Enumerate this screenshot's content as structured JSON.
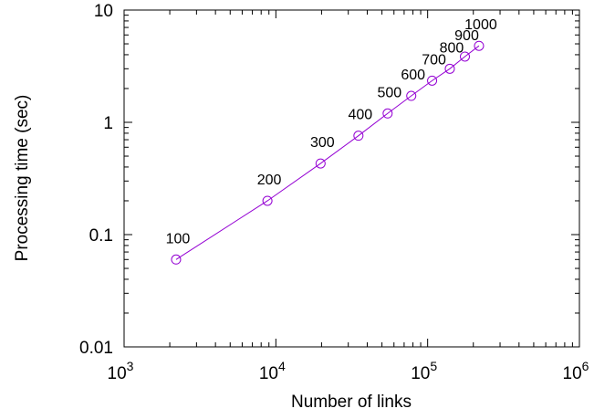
{
  "chart_data": {
    "type": "line",
    "xlabel": "Number of links",
    "ylabel": "Processing time (sec)",
    "xscale": "log",
    "yscale": "log",
    "xlim": [
      1000,
      1000000
    ],
    "ylim": [
      0.01,
      10
    ],
    "x_ticks": [
      {
        "base": "10",
        "exp": "3"
      },
      {
        "base": "10",
        "exp": "4"
      },
      {
        "base": "10",
        "exp": "5"
      },
      {
        "base": "10",
        "exp": "6"
      }
    ],
    "y_ticks": [
      "0.01",
      "0.1",
      "1",
      "10"
    ],
    "grid": false,
    "series": [
      {
        "color": "#9400d3",
        "marker": "open-circle",
        "points": [
          {
            "x": 2200,
            "y": 0.06,
            "label": "100"
          },
          {
            "x": 8800,
            "y": 0.2,
            "label": "200"
          },
          {
            "x": 19700,
            "y": 0.43,
            "label": "300"
          },
          {
            "x": 35000,
            "y": 0.76,
            "label": "400"
          },
          {
            "x": 54500,
            "y": 1.2,
            "label": "500"
          },
          {
            "x": 78000,
            "y": 1.72,
            "label": "600"
          },
          {
            "x": 107000,
            "y": 2.35,
            "label": "700"
          },
          {
            "x": 140000,
            "y": 3.0,
            "label": "800"
          },
          {
            "x": 176000,
            "y": 3.85,
            "label": "900"
          },
          {
            "x": 218000,
            "y": 4.8,
            "label": "1000"
          }
        ]
      }
    ]
  }
}
